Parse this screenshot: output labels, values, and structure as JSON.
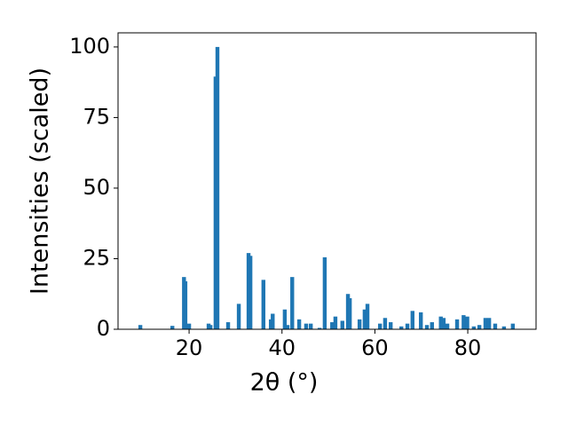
{
  "chart_data": {
    "type": "bar",
    "xlabel": "2θ (°)",
    "ylabel": "Intensities (scaled)",
    "color": "#1f77b4",
    "x": [
      9.5,
      16.4,
      18.9,
      19.2,
      20.0,
      24.2,
      24.6,
      25.7,
      26.1,
      28.4,
      30.7,
      32.8,
      33.2,
      36.0,
      37.6,
      38.0,
      40.6,
      41.2,
      42.2,
      43.7,
      45.2,
      46.2,
      48.1,
      49.2,
      50.8,
      51.5,
      53.0,
      54.2,
      54.6,
      56.7,
      57.8,
      58.4,
      61.1,
      62.2,
      63.4,
      65.7,
      67.0,
      68.1,
      69.9,
      71.2,
      72.3,
      74.2,
      74.8,
      75.6,
      77.7,
      79.1,
      79.9,
      81.3,
      82.5,
      83.8,
      84.6,
      85.9,
      87.8,
      89.7
    ],
    "values": [
      1.5,
      1.2,
      18.5,
      17,
      2,
      2,
      1.5,
      89.5,
      100,
      2.5,
      9,
      27,
      26,
      17.5,
      3.5,
      5.5,
      7,
      1.5,
      18.5,
      3.5,
      2,
      2,
      0.5,
      25.5,
      2.5,
      4.5,
      3,
      12.5,
      11,
      3.5,
      7,
      9,
      2,
      4,
      2.5,
      1,
      2,
      6.5,
      6,
      1.5,
      2.5,
      4.5,
      4,
      2,
      3.5,
      5,
      4.5,
      1,
      1.5,
      4,
      4,
      2,
      1,
      2
    ],
    "xlim": [
      4.7,
      94.7
    ],
    "ylim": [
      0,
      105
    ],
    "xticks": [
      20,
      40,
      60,
      80
    ],
    "yticks": [
      0,
      25,
      50,
      75,
      100
    ]
  }
}
